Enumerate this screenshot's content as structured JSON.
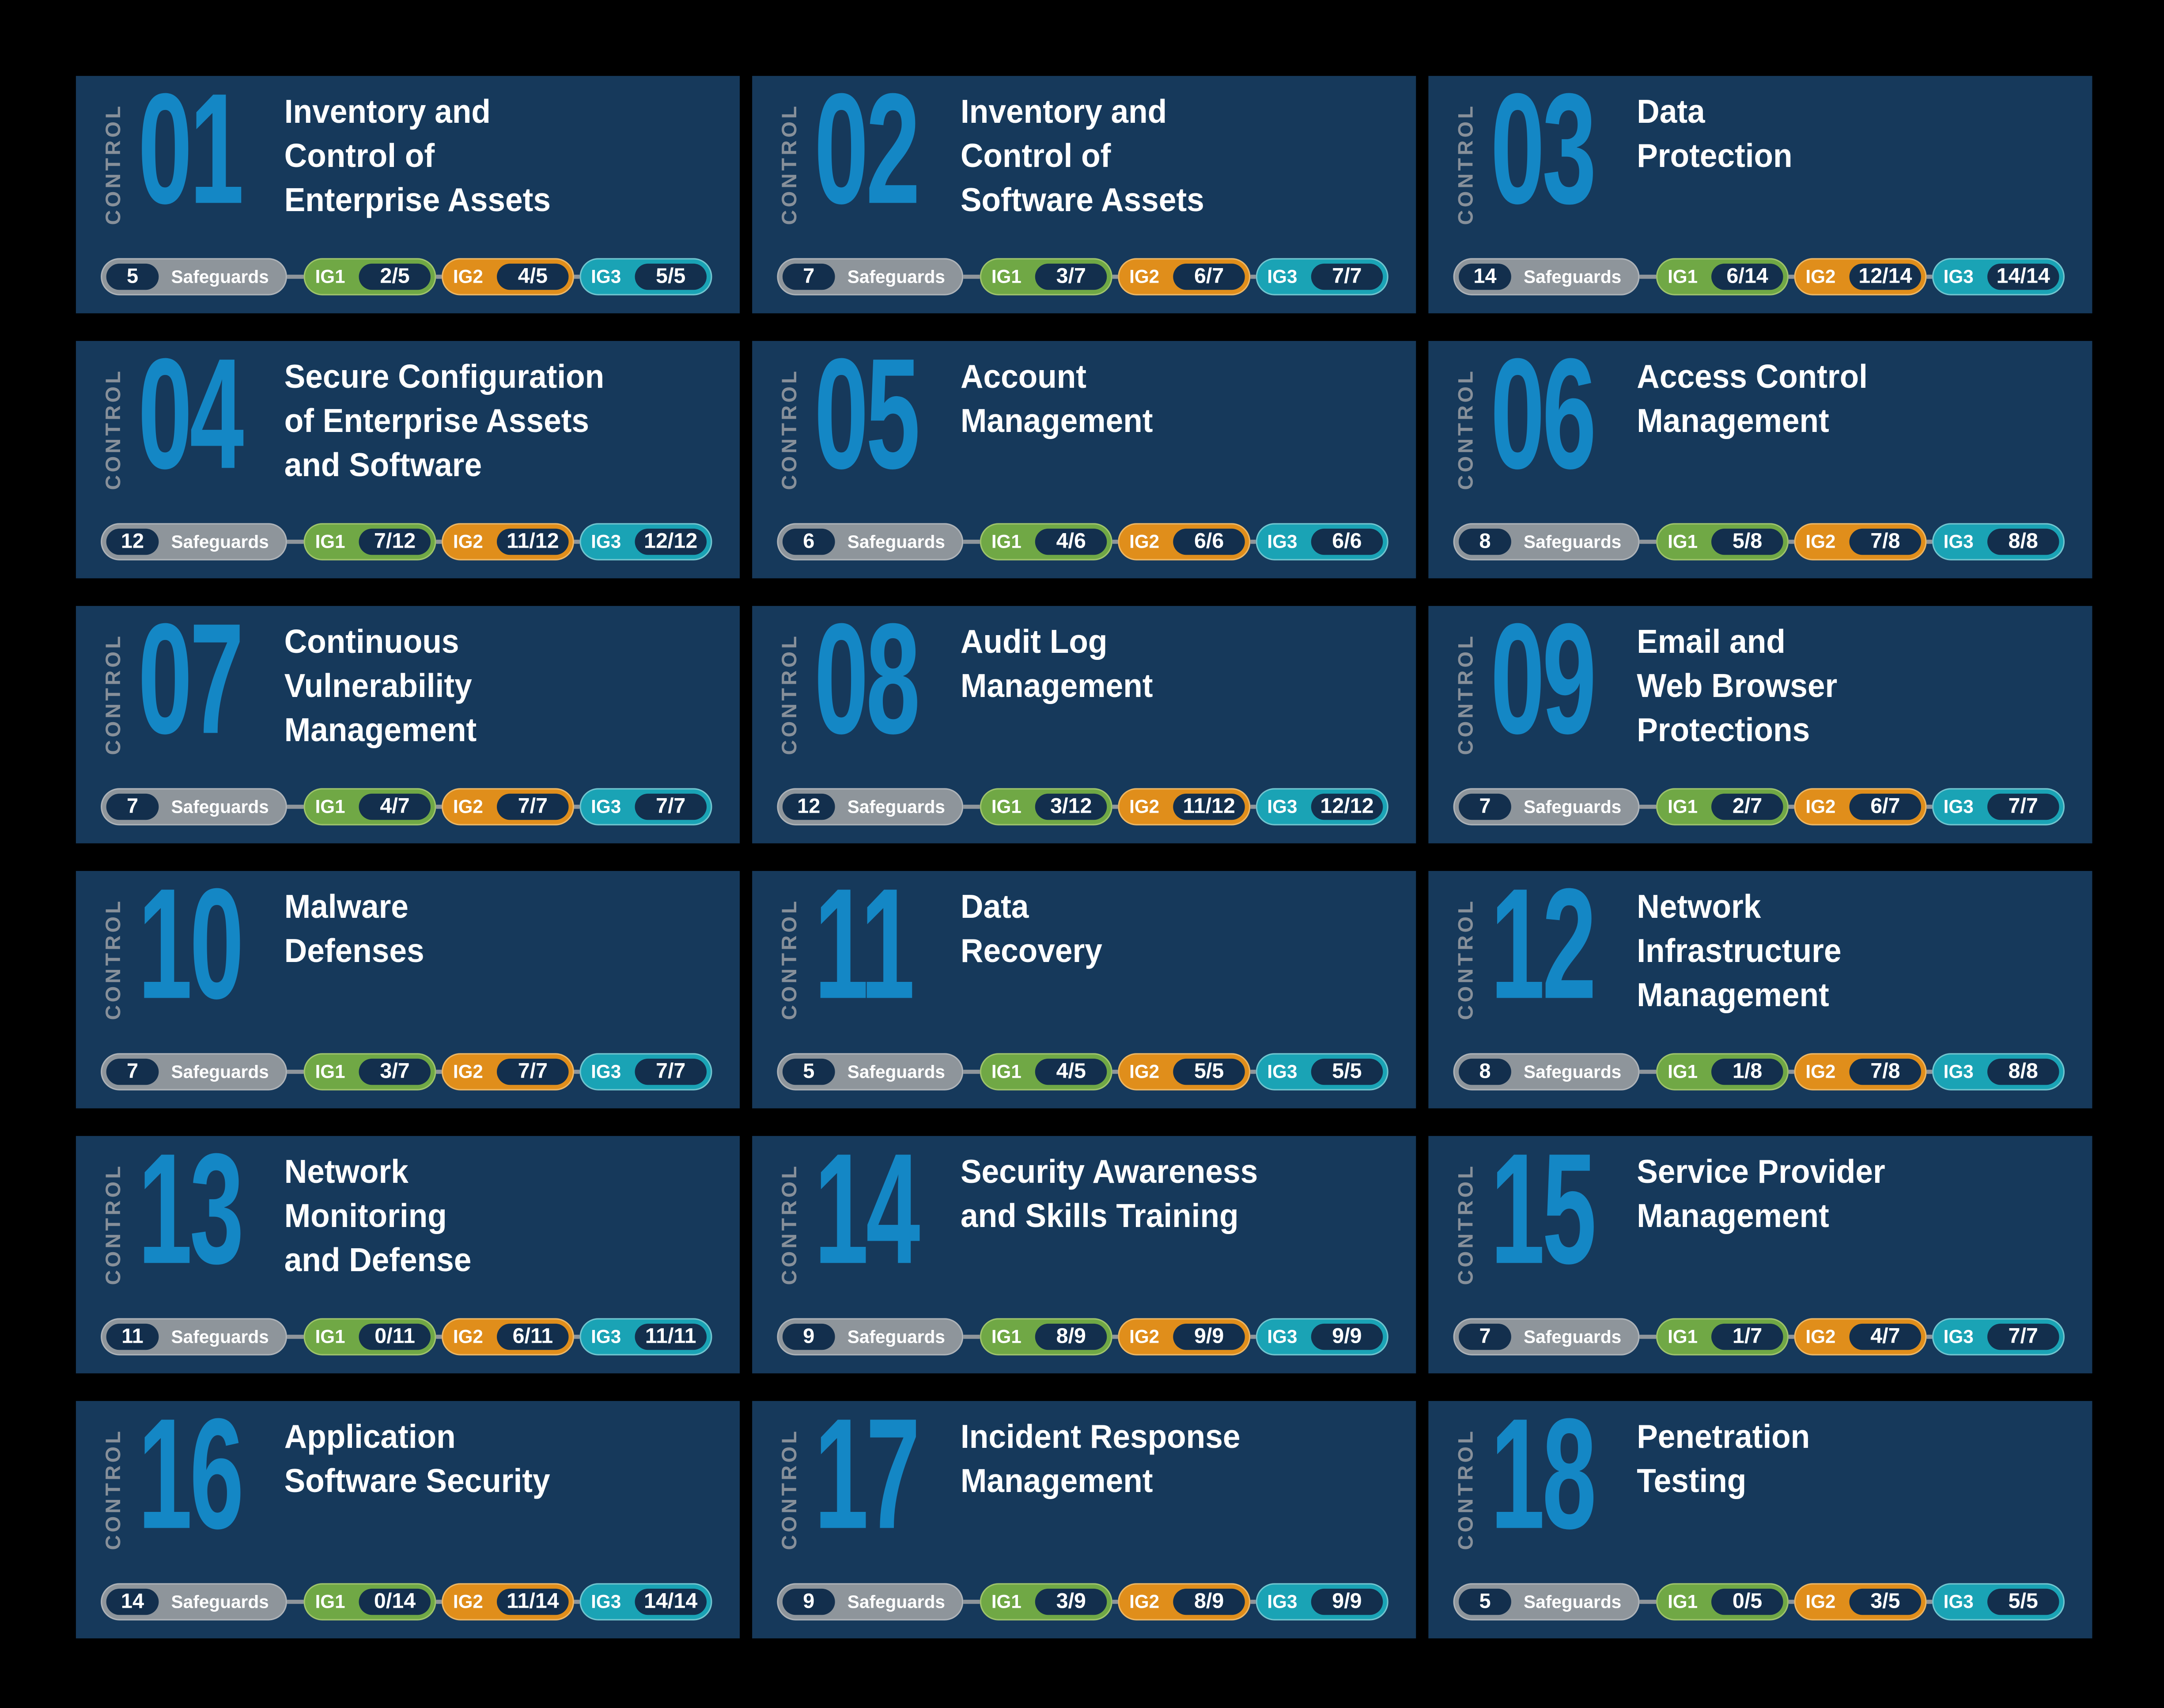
{
  "page": {
    "background": "#000000"
  },
  "shared": {
    "control_label": "CONTROL",
    "safeguards_label": "Safeguards"
  },
  "colors": {
    "card_bg": "#16395B",
    "inner_navy": "#132F4D",
    "number_blue": "#1487C5",
    "control_gray": "#87909A",
    "pill_gray": "#8E959B",
    "pill_gray_border": "#AEB3B8",
    "ig1_green": "#70A845",
    "ig2_orange": "#E08E1B",
    "ig3_teal": "#1AA3B5",
    "title_white": "#FFFFFF"
  },
  "ig_levels": [
    {
      "label": "IG1"
    },
    {
      "label": "IG2"
    },
    {
      "label": "IG3"
    }
  ],
  "cards": [
    {
      "number": "01",
      "title_lines": [
        "Inventory and",
        "Control of",
        "Enterprise Assets"
      ],
      "safeguards": "5",
      "ig_counts": [
        "2/5",
        "4/5",
        "5/5"
      ]
    },
    {
      "number": "02",
      "title_lines": [
        "Inventory and",
        "Control of",
        "Software Assets"
      ],
      "safeguards": "7",
      "ig_counts": [
        "3/7",
        "6/7",
        "7/7"
      ]
    },
    {
      "number": "03",
      "title_lines": [
        "Data",
        "Protection"
      ],
      "safeguards": "14",
      "ig_counts": [
        "6/14",
        "12/14",
        "14/14"
      ]
    },
    {
      "number": "04",
      "title_lines": [
        "Secure Configuration",
        "of Enterprise Assets",
        "and Software"
      ],
      "safeguards": "12",
      "ig_counts": [
        "7/12",
        "11/12",
        "12/12"
      ]
    },
    {
      "number": "05",
      "title_lines": [
        "Account",
        "Management"
      ],
      "safeguards": "6",
      "ig_counts": [
        "4/6",
        "6/6",
        "6/6"
      ]
    },
    {
      "number": "06",
      "title_lines": [
        "Access Control",
        "Management"
      ],
      "safeguards": "8",
      "ig_counts": [
        "5/8",
        "7/8",
        "8/8"
      ]
    },
    {
      "number": "07",
      "title_lines": [
        "Continuous",
        "Vulnerability",
        "Management"
      ],
      "safeguards": "7",
      "ig_counts": [
        "4/7",
        "7/7",
        "7/7"
      ]
    },
    {
      "number": "08",
      "title_lines": [
        "Audit Log",
        "Management"
      ],
      "safeguards": "12",
      "ig_counts": [
        "3/12",
        "11/12",
        "12/12"
      ]
    },
    {
      "number": "09",
      "title_lines": [
        "Email and",
        "Web Browser",
        "Protections"
      ],
      "safeguards": "7",
      "ig_counts": [
        "2/7",
        "6/7",
        "7/7"
      ]
    },
    {
      "number": "10",
      "title_lines": [
        "Malware",
        "Defenses"
      ],
      "safeguards": "7",
      "ig_counts": [
        "3/7",
        "7/7",
        "7/7"
      ]
    },
    {
      "number": "11",
      "title_lines": [
        "Data",
        "Recovery"
      ],
      "safeguards": "5",
      "ig_counts": [
        "4/5",
        "5/5",
        "5/5"
      ]
    },
    {
      "number": "12",
      "title_lines": [
        "Network",
        "Infrastructure",
        "Management"
      ],
      "safeguards": "8",
      "ig_counts": [
        "1/8",
        "7/8",
        "8/8"
      ]
    },
    {
      "number": "13",
      "title_lines": [
        "Network",
        "Monitoring",
        "and Defense"
      ],
      "safeguards": "11",
      "ig_counts": [
        "0/11",
        "6/11",
        "11/11"
      ]
    },
    {
      "number": "14",
      "title_lines": [
        "Security Awareness",
        "and Skills Training"
      ],
      "safeguards": "9",
      "ig_counts": [
        "8/9",
        "9/9",
        "9/9"
      ]
    },
    {
      "number": "15",
      "title_lines": [
        "Service Provider",
        "Management"
      ],
      "safeguards": "7",
      "ig_counts": [
        "1/7",
        "4/7",
        "7/7"
      ]
    },
    {
      "number": "16",
      "title_lines": [
        "Application",
        "Software Security"
      ],
      "safeguards": "14",
      "ig_counts": [
        "0/14",
        "11/14",
        "14/14"
      ]
    },
    {
      "number": "17",
      "title_lines": [
        "Incident Response",
        "Management"
      ],
      "safeguards": "9",
      "ig_counts": [
        "3/9",
        "8/9",
        "9/9"
      ]
    },
    {
      "number": "18",
      "title_lines": [
        "Penetration",
        "Testing"
      ],
      "safeguards": "5",
      "ig_counts": [
        "0/5",
        "3/5",
        "5/5"
      ]
    }
  ]
}
